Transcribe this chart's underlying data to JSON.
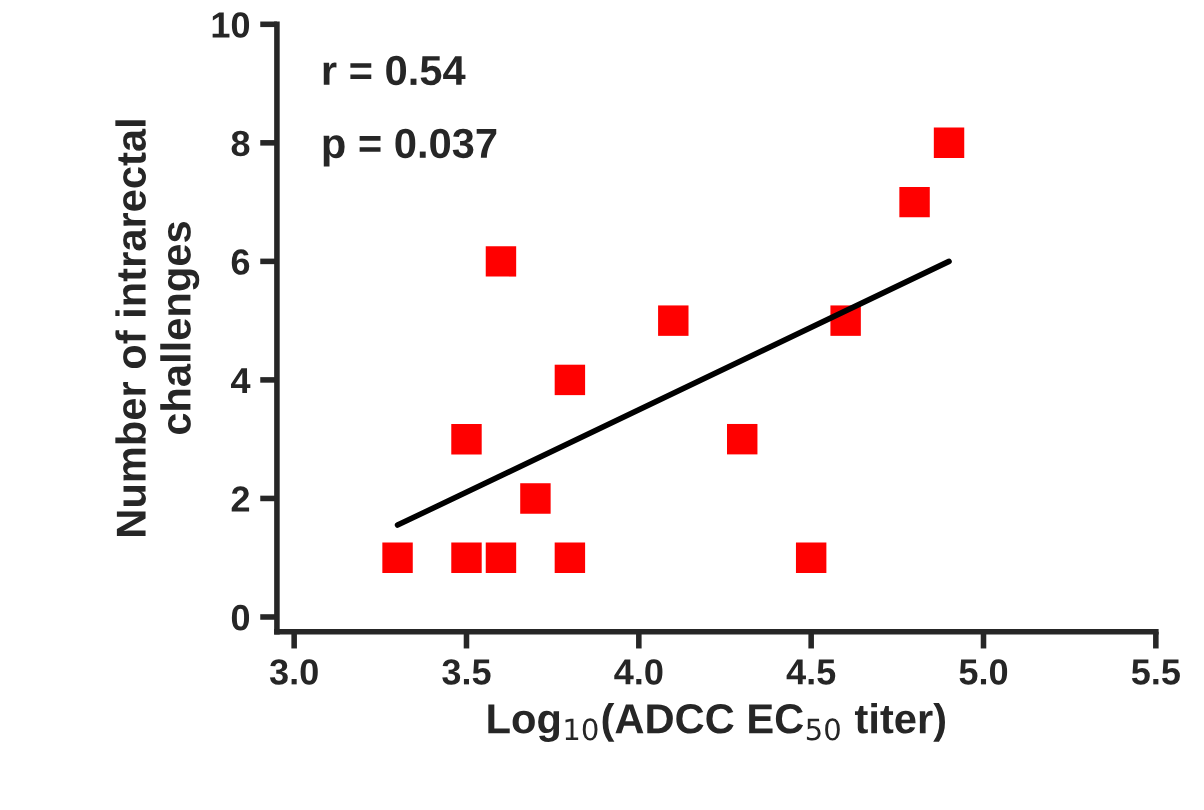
{
  "chart_data": {
    "type": "scatter",
    "xlabel": "Log$_{10}$(ADCC EC$_{50}$ titer)",
    "ylabel": "Number of intrarectal\nchallenges",
    "xlim": [
      2.95,
      5.5
    ],
    "xticks": [
      {
        "value": 3.0,
        "label": "3.0"
      },
      {
        "value": 3.5,
        "label": "3.5"
      },
      {
        "value": 4.0,
        "label": "4.0"
      },
      {
        "value": 4.5,
        "label": "4.5"
      },
      {
        "value": 5.0,
        "label": "5.0"
      },
      {
        "value": 5.5,
        "label": "5.5"
      }
    ],
    "ylim": [
      -0.25,
      10
    ],
    "yticks": [
      0,
      2,
      4,
      6,
      8,
      10
    ],
    "grid": false,
    "legend": false,
    "annotations": [
      "r = 0.54",
      "p = 0.037"
    ],
    "series": [
      {
        "marker": "square",
        "color": "#ff0000",
        "x": [
          3.3,
          3.5,
          3.5,
          3.6,
          3.6,
          3.7,
          3.8,
          3.8,
          4.1,
          4.3,
          4.5,
          4.6,
          4.8,
          4.9
        ],
        "values": [
          1,
          3,
          1,
          1,
          6,
          2,
          4,
          1,
          5,
          3,
          1,
          5,
          7,
          8
        ]
      },
      {
        "type": "line",
        "color": "#000000",
        "x": [
          3.3,
          4.9
        ],
        "values": [
          1.55,
          6.0
        ]
      }
    ]
  }
}
